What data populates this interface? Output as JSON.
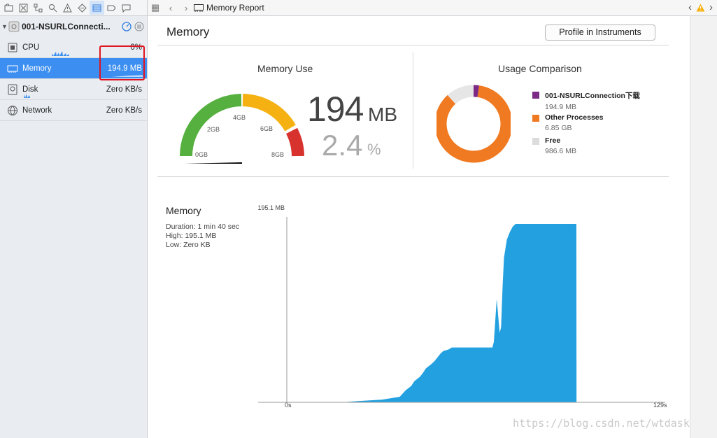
{
  "navigator": {
    "process": {
      "name": "001-NSURLConnecti..."
    },
    "gauges": [
      {
        "label": "CPU",
        "value": "0%"
      },
      {
        "label": "Memory",
        "value": "194.9 MB"
      },
      {
        "label": "Disk",
        "value": "Zero KB/s"
      },
      {
        "label": "Network",
        "value": "Zero KB/s"
      }
    ]
  },
  "topbar": {
    "crumb": "Memory Report"
  },
  "report": {
    "title": "Memory",
    "profile_button": "Profile in Instruments",
    "memory_use": {
      "title": "Memory Use",
      "value": "194",
      "unit": "MB",
      "percent": "2.4",
      "percent_unit": "%",
      "gauge_labels": [
        "2GB",
        "4GB",
        "6GB",
        "8GB",
        "0GB"
      ],
      "gauge_fraction": 0.024
    },
    "usage_comparison": {
      "title": "Usage Comparison",
      "legend": [
        {
          "label": "001-NSURLConnection下载",
          "value": "194.9 MB",
          "color": "#7b2a86",
          "share": 0.023
        },
        {
          "label": "Other Processes",
          "value": "6.85 GB",
          "color": "#f07a22",
          "share": 0.86
        },
        {
          "label": "Free",
          "value": "986.6 MB",
          "color": "#e6e6e6",
          "share": 0.117
        }
      ]
    },
    "graph": {
      "title": "Memory",
      "duration": "Duration: 1 min 40 sec",
      "high": "High: 195.1 MB",
      "low": "Low: Zero KB",
      "y_max_label": "195.1 MB",
      "x_start_label": "0s",
      "x_end_label": "129s"
    }
  },
  "chart_data": {
    "type": "area",
    "title": "Memory",
    "xlabel": "",
    "ylabel": "",
    "xlim": [
      0,
      129
    ],
    "ylim": [
      0,
      195.1
    ],
    "series": [
      {
        "x": [
          0,
          19,
          23,
          33,
          39,
          41,
          43,
          44,
          46,
          47,
          48,
          50,
          51,
          52,
          53,
          54,
          56,
          57,
          60,
          65,
          71,
          71.5,
          72.5,
          73.5,
          74,
          74.5,
          75,
          76,
          77,
          78,
          79,
          80,
          100,
          100.05
        ],
        "values": [
          0,
          0,
          1,
          3,
          6,
          13,
          18,
          23,
          28,
          32,
          37,
          42,
          45,
          49,
          53,
          56,
          58,
          60,
          60,
          60,
          60,
          66,
          113,
          76,
          82,
          125,
          158,
          178,
          186,
          192,
          195.1,
          195.1,
          195.1,
          0
        ]
      }
    ]
  },
  "watermark": "https://blog.csdn.net/wtdask",
  "colors": {
    "accent": "#3c8ff0",
    "graph": "#22a0df",
    "gauge_green": "#55b03f",
    "gauge_yellow": "#f5b111",
    "gauge_red": "#d8322e",
    "highlight": "#e0141f"
  }
}
